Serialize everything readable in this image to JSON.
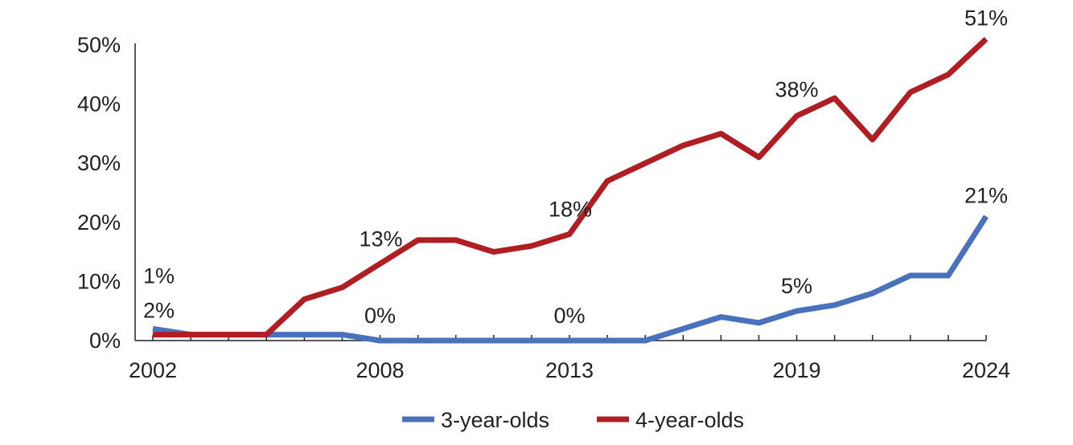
{
  "chart_data": {
    "type": "line",
    "title": "",
    "xlabel": "",
    "ylabel": "",
    "x": [
      2002,
      2003,
      2004,
      2005,
      2006,
      2007,
      2008,
      2009,
      2010,
      2011,
      2012,
      2013,
      2014,
      2015,
      2016,
      2017,
      2018,
      2019,
      2020,
      2021,
      2022,
      2023,
      2024
    ],
    "x_tick_labels": [
      "2002",
      "2008",
      "2013",
      "2019",
      "2024"
    ],
    "x_tick_values": [
      2002,
      2008,
      2013,
      2019,
      2024
    ],
    "y_tick_labels": [
      "0%",
      "10%",
      "20%",
      "30%",
      "40%",
      "50%"
    ],
    "y_tick_values": [
      0,
      10,
      20,
      30,
      40,
      50
    ],
    "ylim": [
      0,
      50
    ],
    "grid": false,
    "legend_position": "bottom",
    "series": [
      {
        "name": "3-year-olds",
        "color": "#4a72bc",
        "values": [
          2,
          1,
          1,
          1,
          1,
          1,
          0,
          0,
          0,
          0,
          0,
          0,
          0,
          0,
          2,
          4,
          3,
          5,
          6,
          8,
          11,
          11,
          21
        ]
      },
      {
        "name": "4-year-olds",
        "color": "#b01e23",
        "values": [
          1,
          1,
          1,
          1,
          7,
          9,
          13,
          17,
          17,
          15,
          16,
          18,
          27,
          30,
          33,
          35,
          31,
          38,
          41,
          34,
          42,
          45,
          51
        ]
      }
    ],
    "annotations": [
      {
        "text": "1%",
        "series": 1,
        "x": 2002
      },
      {
        "text": "2%",
        "series": 0,
        "x": 2002
      },
      {
        "text": "13%",
        "series": 1,
        "x": 2008
      },
      {
        "text": "0%",
        "series": 0,
        "x": 2008
      },
      {
        "text": "18%",
        "series": 1,
        "x": 2013
      },
      {
        "text": "0%",
        "series": 0,
        "x": 2013
      },
      {
        "text": "38%",
        "series": 1,
        "x": 2019
      },
      {
        "text": "5%",
        "series": 0,
        "x": 2019
      },
      {
        "text": "51%",
        "series": 1,
        "x": 2024
      },
      {
        "text": "21%",
        "series": 0,
        "x": 2024
      }
    ]
  }
}
